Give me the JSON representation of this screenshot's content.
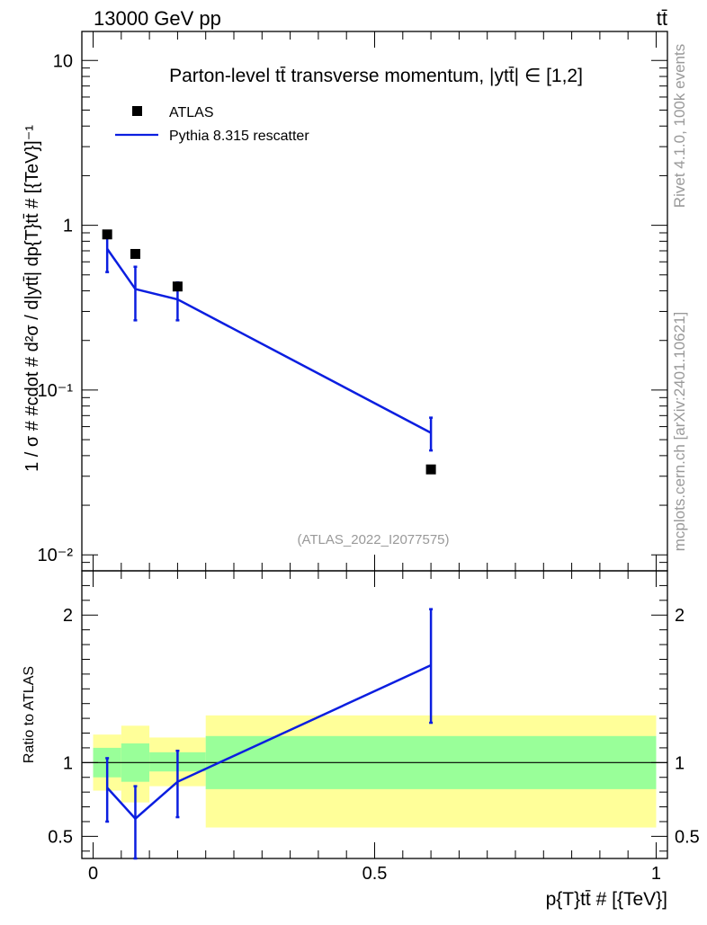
{
  "header": {
    "left": "13000 GeV pp",
    "right": "tt̄"
  },
  "side_labels": {
    "rivet": "Rivet 4.1.0,  100k events",
    "mcplots": "mcplots.cern.ch [arXiv:2401.10621]"
  },
  "colors": {
    "mc": "#0b1ee0",
    "data": "#000000",
    "band_inner": "#99ff99",
    "band_outer": "#ffff99",
    "axis": "#000000",
    "watermark": "#999999"
  },
  "chart_data": [
    {
      "type": "line",
      "scale": "log",
      "title": "Parton-level tt̄ transverse momentum, |ytt̄| ∈ [1,2]",
      "ylabel": "1 / σ # #cdot # d²σ / d|ytt̄| dp{T}tt̄ # [{TeV}]⁻¹",
      "watermark": "(ATLAS_2022_I2077575)",
      "xlim": [
        -0.02,
        1.02
      ],
      "ylim": [
        0.008,
        15
      ],
      "yticks": [
        {
          "value": 10,
          "label": "10"
        },
        {
          "value": 1,
          "label": "1"
        },
        {
          "value": 0.1,
          "label": "10⁻¹"
        },
        {
          "value": 0.01,
          "label": "10⁻²"
        }
      ],
      "legend": {
        "position": "top-left",
        "entries": [
          {
            "name": "ATLAS",
            "marker": "square"
          },
          {
            "name": "Pythia 8.315 rescatter",
            "marker": "line"
          }
        ]
      },
      "series": [
        {
          "name": "ATLAS",
          "x": [
            0.025,
            0.075,
            0.15,
            0.6
          ],
          "y": [
            0.88,
            0.67,
            0.425,
            0.033
          ]
        },
        {
          "name": "Pythia 8.315 rescatter",
          "x": [
            0.025,
            0.075,
            0.15,
            0.6
          ],
          "y": [
            0.72,
            0.41,
            0.355,
            0.055
          ],
          "err_low": [
            0.52,
            0.265,
            0.265,
            0.043
          ],
          "err_high": [
            0.9,
            0.56,
            0.45,
            0.068
          ]
        }
      ]
    },
    {
      "type": "line",
      "ylabel": "Ratio to ATLAS",
      "xlabel": "p{T}tt̄ # [{TeV}]",
      "xlim": [
        -0.02,
        1.02
      ],
      "ylim": [
        0.35,
        2.3
      ],
      "yticks": [
        {
          "value": 2,
          "label": "2"
        },
        {
          "value": 1,
          "label": "1"
        },
        {
          "value": 0.5,
          "label": "0.5"
        }
      ],
      "xticks": [
        {
          "value": 0,
          "label": "0"
        },
        {
          "value": 0.5,
          "label": "0.5"
        },
        {
          "value": 1,
          "label": "1"
        }
      ],
      "bands": [
        {
          "x0": 0.0,
          "x1": 0.05,
          "inner": [
            0.9,
            1.1
          ],
          "outer": [
            0.81,
            1.19
          ]
        },
        {
          "x0": 0.05,
          "x1": 0.1,
          "inner": [
            0.87,
            1.13
          ],
          "outer": [
            0.73,
            1.25
          ]
        },
        {
          "x0": 0.1,
          "x1": 0.2,
          "inner": [
            0.94,
            1.07
          ],
          "outer": [
            0.84,
            1.17
          ]
        },
        {
          "x0": 0.2,
          "x1": 1.0,
          "inner": [
            0.82,
            1.18
          ],
          "outer": [
            0.56,
            1.32
          ]
        }
      ],
      "series": [
        {
          "name": "Pythia 8.315 rescatter",
          "x": [
            0.025,
            0.075,
            0.15,
            0.6
          ],
          "y": [
            0.83,
            0.62,
            0.87,
            1.66
          ],
          "err_low": [
            0.6,
            0.35,
            0.63,
            1.27
          ],
          "err_high": [
            1.03,
            0.84,
            1.08,
            2.04
          ]
        }
      ]
    }
  ]
}
